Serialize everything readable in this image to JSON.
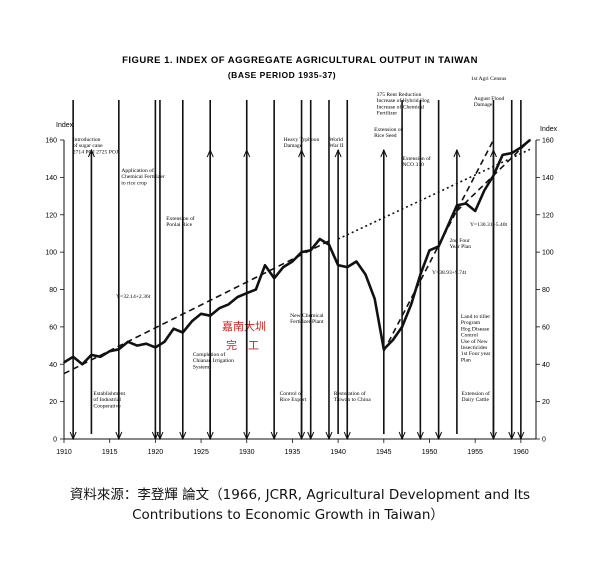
{
  "chart_data": {
    "type": "line",
    "title": "FIGURE 1.  INDEX OF AGGREGATE AGRICULTURAL OUTPUT IN TAIWAN",
    "subtitle": "(BASE PERIOD  1935-37)",
    "ylabel_left": "Index",
    "ylabel_right": "Index",
    "xlim": [
      1910,
      1961
    ],
    "ylim": [
      0,
      160
    ],
    "x_ticks": [
      "1910",
      "1915",
      "1920",
      "1925",
      "1930",
      "1935",
      "1940",
      "1945",
      "1950",
      "1955",
      "1960"
    ],
    "y_ticks": [
      "0",
      "20",
      "40",
      "60",
      "80",
      "100",
      "120",
      "140",
      "160"
    ],
    "grid": false,
    "series": [
      {
        "values": [
          [
            1910,
            41
          ],
          [
            1911,
            44
          ],
          [
            1912,
            40
          ],
          [
            1913,
            45
          ],
          [
            1914,
            44
          ],
          [
            1915,
            47
          ],
          [
            1916,
            48
          ],
          [
            1917,
            52
          ],
          [
            1918,
            50
          ],
          [
            1919,
            51
          ],
          [
            1920,
            49
          ],
          [
            1921,
            52
          ],
          [
            1922,
            59
          ],
          [
            1923,
            57
          ],
          [
            1924,
            63
          ],
          [
            1925,
            67
          ],
          [
            1926,
            66
          ],
          [
            1927,
            70
          ],
          [
            1928,
            72
          ],
          [
            1929,
            76
          ],
          [
            1930,
            78
          ],
          [
            1931,
            80
          ],
          [
            1932,
            93
          ],
          [
            1933,
            86
          ],
          [
            1934,
            92
          ],
          [
            1935,
            95
          ],
          [
            1936,
            100
          ],
          [
            1937,
            101
          ],
          [
            1938,
            107
          ],
          [
            1939,
            104
          ],
          [
            1940,
            93
          ],
          [
            1941,
            92
          ],
          [
            1942,
            95
          ],
          [
            1943,
            88
          ],
          [
            1944,
            75
          ],
          [
            1945,
            48
          ],
          [
            1946,
            53
          ],
          [
            1947,
            60
          ],
          [
            1948,
            72
          ],
          [
            1949,
            88
          ],
          [
            1950,
            101
          ],
          [
            1951,
            103
          ],
          [
            1952,
            114
          ],
          [
            1953,
            125
          ],
          [
            1954,
            126
          ],
          [
            1955,
            122
          ],
          [
            1956,
            133
          ],
          [
            1957,
            141
          ],
          [
            1958,
            152
          ],
          [
            1959,
            153
          ],
          [
            1960,
            156
          ],
          [
            1961,
            160
          ]
        ]
      }
    ],
    "trend_lines": [
      {
        "label": "Y=32.14+2.36t",
        "style": "dashed",
        "from": [
          1910,
          35
        ],
        "to": [
          1939,
          106
        ]
      },
      {
        "label": "",
        "style": "dotted",
        "from": [
          1940,
          107
        ],
        "to": [
          1961,
          155
        ]
      },
      {
        "label": "Y=38.93+9.74t",
        "style": "dashed",
        "from": [
          1945,
          47
        ],
        "to": [
          1957,
          160
        ]
      },
      {
        "label": "Y=130.31+5.40t",
        "style": "dashed",
        "from": [
          1953,
          122
        ],
        "to": [
          1961,
          160
        ]
      }
    ],
    "events": [
      {
        "year": 1911,
        "side": "top",
        "label": ""
      },
      {
        "year": 1913,
        "side": "bottom",
        "label": "Establishment\nof Industrial\nCooperative"
      },
      {
        "year": 1916,
        "side": "top",
        "label": "Introduction\nof sugar cane\n2714 POJ  2725 POJ"
      },
      {
        "year": 1920,
        "side": "top",
        "label": "Application of\nChemical Fertilizer\nto rice crop"
      },
      {
        "year": 1920.5,
        "side": "top",
        "label": ""
      },
      {
        "year": 1923,
        "side": "top",
        "label": ""
      },
      {
        "year": 1926,
        "side": "top",
        "label": "Extension of\nPonlai Rice"
      },
      {
        "year": 1926,
        "side": "bottom",
        "label": ""
      },
      {
        "year": 1930,
        "side": "top",
        "label": ""
      },
      {
        "year": 1930,
        "side": "bottom",
        "label": "Completion of\nChianan Irrigation\nSystem"
      },
      {
        "year": 1933,
        "side": "top",
        "label": ""
      },
      {
        "year": 1936,
        "side": "top",
        "label": "Heavy Typhoon\nDamage"
      },
      {
        "year": 1936,
        "side": "bottom",
        "label": "Control of\nRice Export"
      },
      {
        "year": 1937,
        "side": "top",
        "label": ""
      },
      {
        "year": 1939,
        "side": "top",
        "label": ""
      },
      {
        "year": 1940,
        "side": "bottom",
        "label": "New Chemical\nFertilizer Plant"
      },
      {
        "year": 1941,
        "side": "top",
        "label": "World\nWar II"
      },
      {
        "year": 1945,
        "side": "bottom",
        "label": "Restoration of\nTaiwan to China"
      },
      {
        "year": 1947,
        "side": "top",
        "label": "Extension of\nRice Seed"
      },
      {
        "year": 1949,
        "side": "top",
        "label": "Extension of\nNCO 310"
      },
      {
        "year": 1951,
        "side": "top",
        "label": "375 Rent Reduction\nIncrease of Hybrid Hog\nIncrease of Chemical\nFertilizer"
      },
      {
        "year": 1953,
        "side": "bottom",
        "label": "Land to tiller\nProgram\nHog Disease\nControl\nUse of New\nInsecticides\n1st Four year\nPlan"
      },
      {
        "year": 1957,
        "side": "top",
        "label": "2nd Four\nYear Plan"
      },
      {
        "year": 1957,
        "side": "bottom",
        "label": "Extension of\nDairy Cattle"
      },
      {
        "year": 1959,
        "side": "top",
        "label": "August Flood\nDamage"
      },
      {
        "year": 1960,
        "side": "top",
        "label": "1st Agri Census"
      }
    ],
    "annotations": [
      {
        "x": 1942,
        "y": 110,
        "text": "World War II"
      }
    ]
  },
  "figure": {
    "title": "FIGURE 1.  INDEX OF AGGREGATE AGRICULTURAL OUTPUT IN TAIWAN",
    "subtitle": "(BASE PERIOD  1935-37)",
    "y_label_left": "Index",
    "y_label_right": "Index",
    "eq_prewar": "Y=32.14+2.36t",
    "eq_postwar1": "Y=38.93+9.74t",
    "eq_postwar2": "Y=130.31+5.40t",
    "stamp_line1": "嘉南大圳",
    "stamp_line2": "完　工"
  },
  "caption": {
    "line1": "資料來源：李登輝  論文（1966, JCRR, Agricultural Development and Its",
    "line2": "Contributions to Economic Growth in Taiwan）"
  },
  "colors": {
    "ink": "#111111",
    "stamp": "#d42020",
    "background": "#ffffff"
  }
}
